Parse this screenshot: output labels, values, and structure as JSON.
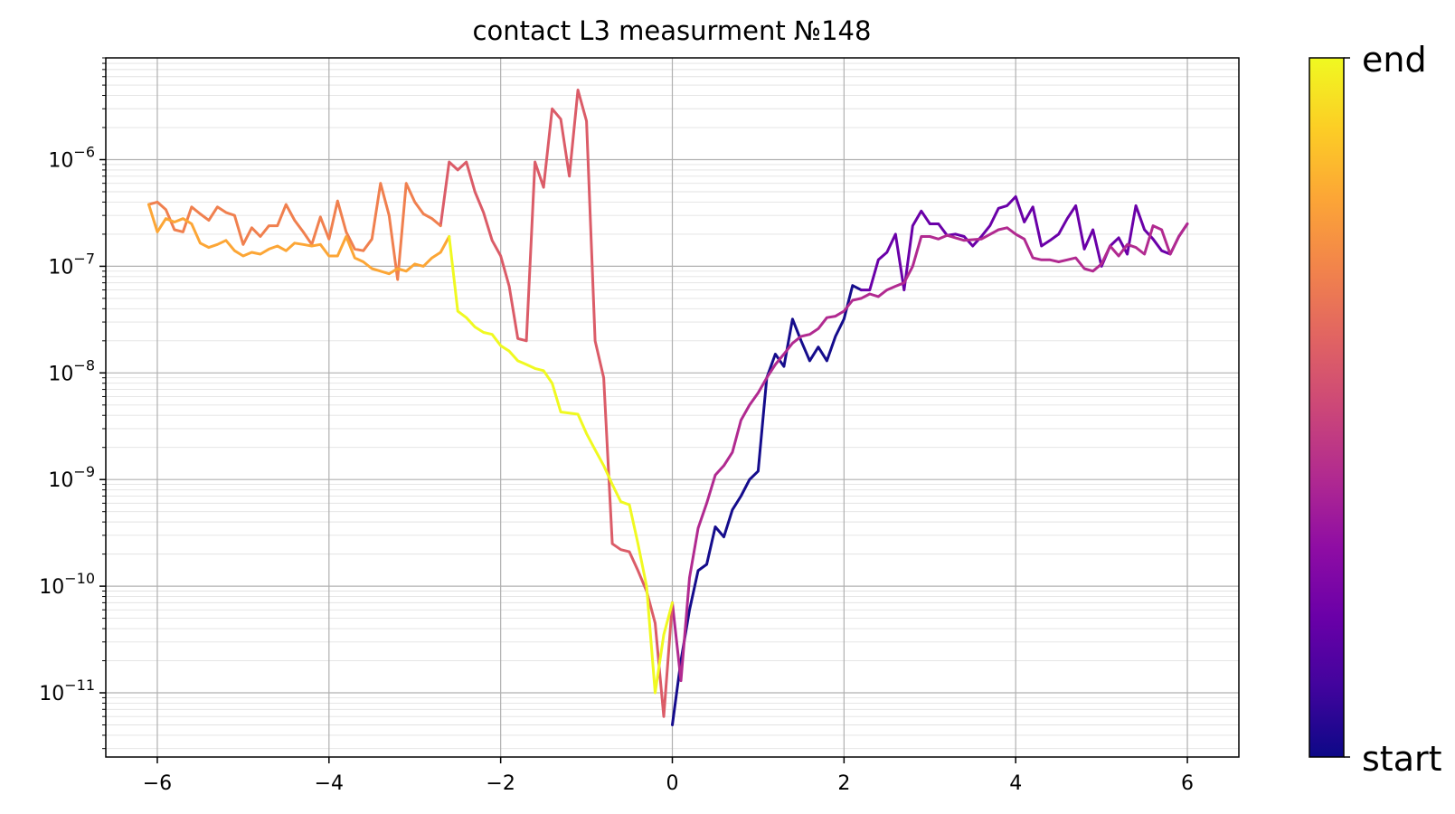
{
  "chart_data": {
    "type": "line",
    "title": "contact L3 measurment №148",
    "xlabel": "",
    "ylabel": "",
    "xlim": [
      -6.6,
      6.6
    ],
    "ylim": [
      2.5e-12,
      9e-06
    ],
    "yscale": "log",
    "grid": true,
    "x_ticks": [
      -6,
      -4,
      -2,
      0,
      2,
      4,
      6
    ],
    "x_tick_labels": [
      "−6",
      "−4",
      "−2",
      "0",
      "2",
      "4",
      "6"
    ],
    "y_ticks": [
      {
        "mant": "10",
        "exp": "−11",
        "value": 1e-11
      },
      {
        "mant": "10",
        "exp": "−10",
        "value": 1e-10
      },
      {
        "mant": "10",
        "exp": "−9",
        "value": 1e-09
      },
      {
        "mant": "10",
        "exp": "−8",
        "value": 1e-08
      },
      {
        "mant": "10",
        "exp": "−7",
        "value": 1e-07
      },
      {
        "mant": "10",
        "exp": "−6",
        "value": 1e-06
      }
    ],
    "colorbar": {
      "colormap": "plasma",
      "label_top": "end",
      "label_bottom": "start",
      "placement": "right"
    },
    "series": [
      {
        "color": "#150c8c",
        "points": [
          [
            0.0,
            5e-12
          ],
          [
            0.1,
            2e-11
          ],
          [
            0.2,
            6e-11
          ],
          [
            0.3,
            1.4e-10
          ],
          [
            0.4,
            1.6e-10
          ],
          [
            0.5,
            3.6e-10
          ],
          [
            0.6,
            2.9e-10
          ],
          [
            0.7,
            5.2e-10
          ],
          [
            0.8,
            7e-10
          ],
          [
            0.9,
            1e-09
          ],
          [
            1.0,
            1.2e-09
          ],
          [
            1.1,
            9e-09
          ],
          [
            1.2,
            1.5e-08
          ],
          [
            1.3,
            1.15e-08
          ],
          [
            1.4,
            3.2e-08
          ],
          [
            1.5,
            2e-08
          ],
          [
            1.6,
            1.3e-08
          ],
          [
            1.7,
            1.75e-08
          ],
          [
            1.8,
            1.3e-08
          ],
          [
            1.9,
            2.2e-08
          ],
          [
            2.0,
            3.2e-08
          ],
          [
            2.1,
            6.6e-08
          ],
          [
            2.2,
            6e-08
          ]
        ]
      },
      {
        "color": "#6a00a8",
        "points": [
          [
            2.2,
            6e-08
          ],
          [
            2.3,
            6e-08
          ],
          [
            2.4,
            1.15e-07
          ],
          [
            2.5,
            1.35e-07
          ],
          [
            2.6,
            2e-07
          ],
          [
            2.7,
            6e-08
          ],
          [
            2.8,
            2.4e-07
          ],
          [
            2.9,
            3.3e-07
          ],
          [
            3.0,
            2.5e-07
          ],
          [
            3.1,
            2.5e-07
          ],
          [
            3.2,
            1.95e-07
          ],
          [
            3.3,
            2e-07
          ],
          [
            3.4,
            1.9e-07
          ],
          [
            3.5,
            1.55e-07
          ],
          [
            3.6,
            1.9e-07
          ],
          [
            3.7,
            2.4e-07
          ],
          [
            3.8,
            3.5e-07
          ],
          [
            3.9,
            3.7e-07
          ],
          [
            4.0,
            4.5e-07
          ],
          [
            4.1,
            2.6e-07
          ],
          [
            4.2,
            3.6e-07
          ],
          [
            4.3,
            1.55e-07
          ],
          [
            4.4,
            1.75e-07
          ],
          [
            4.5,
            2e-07
          ],
          [
            4.6,
            2.8e-07
          ],
          [
            4.7,
            3.7e-07
          ],
          [
            4.8,
            1.45e-07
          ],
          [
            4.9,
            2.2e-07
          ],
          [
            5.0,
            1e-07
          ],
          [
            5.1,
            1.55e-07
          ],
          [
            5.2,
            1.85e-07
          ],
          [
            5.3,
            1.3e-07
          ],
          [
            5.4,
            3.7e-07
          ],
          [
            5.5,
            2.2e-07
          ],
          [
            5.6,
            1.8e-07
          ],
          [
            5.7,
            1.4e-07
          ],
          [
            5.8,
            1.3e-07
          ],
          [
            5.9,
            1.9e-07
          ],
          [
            6.0,
            2.5e-07
          ]
        ]
      },
      {
        "color": "#b12a90",
        "points": [
          [
            6.0,
            2.5e-07
          ],
          [
            5.9,
            1.9e-07
          ],
          [
            5.8,
            1.3e-07
          ],
          [
            5.7,
            2.2e-07
          ],
          [
            5.6,
            2.4e-07
          ],
          [
            5.5,
            1.3e-07
          ],
          [
            5.4,
            1.5e-07
          ],
          [
            5.3,
            1.6e-07
          ],
          [
            5.2,
            1.25e-07
          ],
          [
            5.1,
            1.55e-07
          ],
          [
            5.0,
            1.05e-07
          ],
          [
            4.9,
            9e-08
          ],
          [
            4.8,
            9.5e-08
          ],
          [
            4.7,
            1.2e-07
          ],
          [
            4.6,
            1.15e-07
          ],
          [
            4.5,
            1.1e-07
          ],
          [
            4.4,
            1.15e-07
          ],
          [
            4.3,
            1.15e-07
          ],
          [
            4.2,
            1.2e-07
          ],
          [
            4.1,
            1.8e-07
          ],
          [
            4.0,
            2e-07
          ],
          [
            3.9,
            2.3e-07
          ],
          [
            3.8,
            2.2e-07
          ],
          [
            3.6,
            1.8e-07
          ],
          [
            3.4,
            1.75e-07
          ],
          [
            3.2,
            1.95e-07
          ],
          [
            3.1,
            1.8e-07
          ],
          [
            3.0,
            1.9e-07
          ],
          [
            2.9,
            1.9e-07
          ],
          [
            2.8,
            1e-07
          ],
          [
            2.7,
            7e-08
          ],
          [
            2.6,
            6.5e-08
          ],
          [
            2.5,
            6e-08
          ],
          [
            2.4,
            5.2e-08
          ],
          [
            2.3,
            5.5e-08
          ],
          [
            2.2,
            5e-08
          ],
          [
            2.1,
            4.8e-08
          ],
          [
            2.0,
            3.8e-08
          ],
          [
            1.9,
            3.4e-08
          ],
          [
            1.8,
            3.3e-08
          ],
          [
            1.7,
            2.6e-08
          ],
          [
            1.6,
            2.3e-08
          ],
          [
            1.5,
            2.2e-08
          ],
          [
            1.4,
            1.9e-08
          ],
          [
            1.3,
            1.5e-08
          ],
          [
            1.2,
            1.2e-08
          ],
          [
            1.1,
            9e-09
          ],
          [
            1.0,
            6.5e-09
          ],
          [
            0.9,
            5e-09
          ],
          [
            0.8,
            3.6e-09
          ],
          [
            0.7,
            1.8e-09
          ],
          [
            0.6,
            1.35e-09
          ],
          [
            0.5,
            1.1e-09
          ],
          [
            0.4,
            6e-10
          ],
          [
            0.3,
            3.5e-10
          ],
          [
            0.2,
            1.2e-10
          ],
          [
            0.1,
            1.3e-11
          ],
          [
            0.0,
            7e-11
          ]
        ]
      },
      {
        "color": "#db5c68",
        "points": [
          [
            0.0,
            7e-11
          ],
          [
            -0.1,
            6e-12
          ],
          [
            -0.2,
            4.5e-11
          ],
          [
            -0.3,
            9e-11
          ],
          [
            -0.4,
            1.4e-10
          ],
          [
            -0.5,
            2.1e-10
          ],
          [
            -0.6,
            2.2e-10
          ],
          [
            -0.7,
            2.5e-10
          ],
          [
            -0.8,
            9e-09
          ],
          [
            -0.9,
            2e-08
          ],
          [
            -1.0,
            2.3e-06
          ],
          [
            -1.1,
            4.5e-06
          ],
          [
            -1.2,
            7e-07
          ],
          [
            -1.3,
            2.4e-06
          ],
          [
            -1.4,
            3e-06
          ],
          [
            -1.5,
            5.5e-07
          ],
          [
            -1.6,
            9.5e-07
          ],
          [
            -1.7,
            2e-08
          ],
          [
            -1.8,
            2.1e-08
          ],
          [
            -1.9,
            6.5e-08
          ],
          [
            -2.0,
            1.25e-07
          ],
          [
            -2.1,
            1.75e-07
          ],
          [
            -2.2,
            3.2e-07
          ],
          [
            -2.3,
            5e-07
          ],
          [
            -2.4,
            9.5e-07
          ],
          [
            -2.5,
            8e-07
          ],
          [
            -2.6,
            9.5e-07
          ],
          [
            -2.7,
            2.4e-07
          ]
        ]
      },
      {
        "color": "#f0804f",
        "points": [
          [
            -2.7,
            2.4e-07
          ],
          [
            -2.8,
            2.8e-07
          ],
          [
            -2.9,
            3.1e-07
          ],
          [
            -3.0,
            4e-07
          ],
          [
            -3.1,
            6e-07
          ],
          [
            -3.2,
            7.5e-08
          ],
          [
            -3.3,
            3e-07
          ],
          [
            -3.4,
            6e-07
          ],
          [
            -3.5,
            1.8e-07
          ],
          [
            -3.6,
            1.4e-07
          ],
          [
            -3.7,
            1.45e-07
          ],
          [
            -3.8,
            2.1e-07
          ],
          [
            -3.9,
            4.1e-07
          ],
          [
            -4.0,
            1.8e-07
          ],
          [
            -4.1,
            2.9e-07
          ],
          [
            -4.2,
            1.6e-07
          ],
          [
            -4.3,
            2.1e-07
          ],
          [
            -4.4,
            2.7e-07
          ],
          [
            -4.5,
            3.8e-07
          ],
          [
            -4.6,
            2.4e-07
          ],
          [
            -4.7,
            2.4e-07
          ],
          [
            -4.8,
            1.9e-07
          ],
          [
            -4.9,
            2.3e-07
          ],
          [
            -5.0,
            1.6e-07
          ],
          [
            -5.1,
            3e-07
          ],
          [
            -5.2,
            3.2e-07
          ],
          [
            -5.3,
            3.6e-07
          ],
          [
            -5.4,
            2.7e-07
          ],
          [
            -5.5,
            3.1e-07
          ],
          [
            -5.6,
            3.6e-07
          ],
          [
            -5.7,
            2.1e-07
          ],
          [
            -5.8,
            2.2e-07
          ],
          [
            -5.9,
            3.4e-07
          ],
          [
            -6.0,
            4e-07
          ],
          [
            -6.1,
            3.8e-07
          ]
        ]
      },
      {
        "color": "#fca636",
        "points": [
          [
            -6.1,
            3.8e-07
          ],
          [
            -6.0,
            2.1e-07
          ],
          [
            -5.9,
            2.8e-07
          ],
          [
            -5.8,
            2.6e-07
          ],
          [
            -5.7,
            2.8e-07
          ],
          [
            -5.6,
            2.5e-07
          ],
          [
            -5.5,
            1.65e-07
          ],
          [
            -5.4,
            1.5e-07
          ],
          [
            -5.3,
            1.6e-07
          ],
          [
            -5.2,
            1.75e-07
          ],
          [
            -5.1,
            1.4e-07
          ],
          [
            -5.0,
            1.25e-07
          ],
          [
            -4.9,
            1.35e-07
          ],
          [
            -4.8,
            1.3e-07
          ],
          [
            -4.7,
            1.45e-07
          ],
          [
            -4.6,
            1.55e-07
          ],
          [
            -4.5,
            1.4e-07
          ],
          [
            -4.4,
            1.65e-07
          ],
          [
            -4.3,
            1.6e-07
          ],
          [
            -4.2,
            1.55e-07
          ],
          [
            -4.1,
            1.6e-07
          ],
          [
            -4.0,
            1.25e-07
          ],
          [
            -3.9,
            1.25e-07
          ],
          [
            -3.8,
            1.9e-07
          ],
          [
            -3.7,
            1.2e-07
          ],
          [
            -3.6,
            1.1e-07
          ],
          [
            -3.5,
            9.5e-08
          ],
          [
            -3.4,
            9e-08
          ],
          [
            -3.3,
            8.5e-08
          ],
          [
            -3.2,
            9.5e-08
          ],
          [
            -3.1,
            9e-08
          ],
          [
            -3.0,
            1.05e-07
          ],
          [
            -2.9,
            1e-07
          ],
          [
            -2.8,
            1.2e-07
          ],
          [
            -2.7,
            1.35e-07
          ],
          [
            -2.6,
            1.9e-07
          ]
        ]
      },
      {
        "color": "#f0f921",
        "points": [
          [
            -2.6,
            1.9e-07
          ],
          [
            -2.5,
            3.8e-08
          ],
          [
            -2.4,
            3.3e-08
          ],
          [
            -2.3,
            2.7e-08
          ],
          [
            -2.2,
            2.4e-08
          ],
          [
            -2.1,
            2.3e-08
          ],
          [
            -2.0,
            1.8e-08
          ],
          [
            -1.9,
            1.6e-08
          ],
          [
            -1.8,
            1.3e-08
          ],
          [
            -1.7,
            1.2e-08
          ],
          [
            -1.6,
            1.1e-08
          ],
          [
            -1.5,
            1.05e-08
          ],
          [
            -1.4,
            8e-09
          ],
          [
            -1.3,
            4.3e-09
          ],
          [
            -1.2,
            4.2e-09
          ],
          [
            -1.1,
            4.1e-09
          ],
          [
            -1.0,
            2.7e-09
          ],
          [
            -0.9,
            1.9e-09
          ],
          [
            -0.8,
            1.35e-09
          ],
          [
            -0.7,
            9e-10
          ],
          [
            -0.6,
            6.2e-10
          ],
          [
            -0.5,
            5.8e-10
          ],
          [
            -0.4,
            2.5e-10
          ],
          [
            -0.3,
            1e-10
          ],
          [
            -0.2,
            1e-11
          ],
          [
            -0.1,
            3.5e-11
          ],
          [
            0.0,
            7e-11
          ]
        ]
      }
    ]
  }
}
